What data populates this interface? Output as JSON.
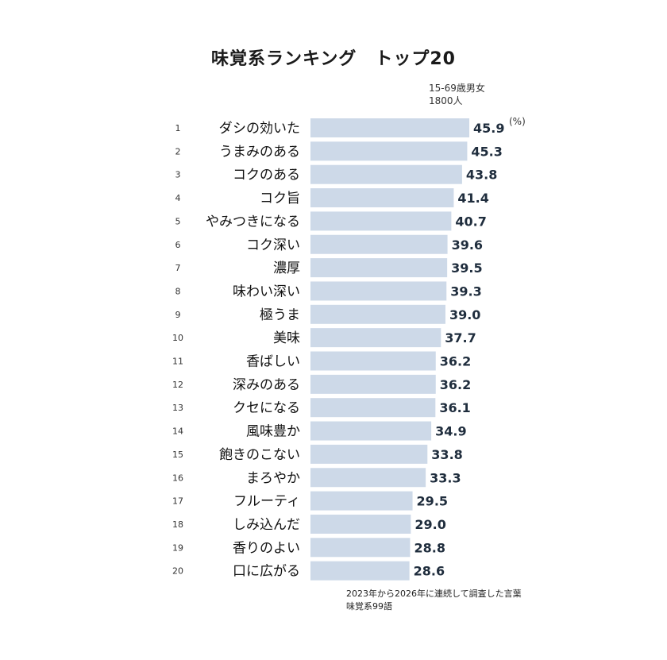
{
  "title": "味覚系ランキング　トップ20",
  "sample": {
    "line1": "15-69歳男女",
    "line2": "1800人"
  },
  "unit": "(%)",
  "footnote": {
    "line1": "2023年から2026年に連続して調査した言葉",
    "line2": "味覚系99語"
  },
  "colors": {
    "bar": "#cdd9e8",
    "value_text": "#1f2d3d",
    "label_text": "#111111",
    "rank_text": "#333333"
  },
  "chart_data": {
    "type": "bar",
    "orientation": "horizontal",
    "title": "味覚系ランキング　トップ20",
    "ranks": [
      "1",
      "2",
      "3",
      "4",
      "5",
      "6",
      "7",
      "8",
      "9",
      "10",
      "11",
      "12",
      "13",
      "14",
      "15",
      "16",
      "17",
      "18",
      "19",
      "20"
    ],
    "categories": [
      "ダシの効いた",
      "うまみのある",
      "コクのある",
      "コク旨",
      "やみつきになる",
      "コク深い",
      "濃厚",
      "味わい深い",
      "極うま",
      "美味",
      "香ばしい",
      "深みのある",
      "クセになる",
      "風味豊か",
      "飽きのこない",
      "まろやか",
      "フルーティ",
      "しみ込んだ",
      "香りのよい",
      "口に広がる"
    ],
    "values": [
      45.9,
      45.3,
      43.8,
      41.4,
      40.7,
      39.6,
      39.5,
      39.3,
      39.0,
      37.7,
      36.2,
      36.2,
      36.1,
      34.9,
      33.8,
      33.3,
      29.5,
      29.0,
      28.8,
      28.6
    ],
    "value_labels": [
      "45.9",
      "45.3",
      "43.8",
      "41.4",
      "40.7",
      "39.6",
      "39.5",
      "39.3",
      "39.0",
      "37.7",
      "36.2",
      "36.2",
      "36.1",
      "34.9",
      "33.8",
      "33.3",
      "29.5",
      "29.0",
      "28.8",
      "28.6"
    ],
    "unit": "(%)"
  }
}
